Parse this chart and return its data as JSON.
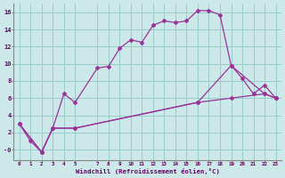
{
  "xlabel": "Windchill (Refroidissement éolien,°C)",
  "background_color": "#cce8e8",
  "grid_color": "#99cccc",
  "line_color": "#993399",
  "xlim": [
    -0.5,
    23.5
  ],
  "ylim": [
    -1.2,
    17
  ],
  "xticks": [
    0,
    1,
    2,
    3,
    4,
    5,
    7,
    8,
    9,
    10,
    11,
    12,
    13,
    14,
    15,
    16,
    17,
    18,
    19,
    20,
    21,
    22,
    23
  ],
  "yticks": [
    0,
    2,
    4,
    6,
    8,
    10,
    12,
    14,
    16
  ],
  "ytick_labels": [
    "-0",
    "2",
    "4",
    "6",
    "8",
    "10",
    "12",
    "14",
    "16"
  ],
  "line1_x": [
    0,
    1,
    2,
    3,
    4,
    5,
    7,
    8,
    9,
    10,
    11,
    12,
    13,
    14,
    15,
    16,
    17,
    18,
    19,
    20,
    21,
    22,
    23
  ],
  "line1_y": [
    3.0,
    1.0,
    -0.3,
    2.5,
    6.5,
    5.5,
    9.5,
    9.7,
    11.8,
    12.8,
    12.5,
    14.5,
    15.0,
    14.8,
    15.0,
    16.2,
    16.2,
    15.7,
    9.8,
    8.3,
    6.5,
    7.5,
    6.0
  ],
  "line2_x": [
    0,
    2,
    3,
    5,
    16,
    19,
    22,
    23
  ],
  "line2_y": [
    3.0,
    -0.3,
    2.5,
    2.5,
    5.5,
    9.8,
    6.5,
    6.0
  ],
  "line3_x": [
    0,
    2,
    3,
    5,
    16,
    19,
    22,
    23
  ],
  "line3_y": [
    3.0,
    -0.3,
    2.5,
    2.5,
    5.5,
    6.0,
    6.5,
    6.0
  ]
}
